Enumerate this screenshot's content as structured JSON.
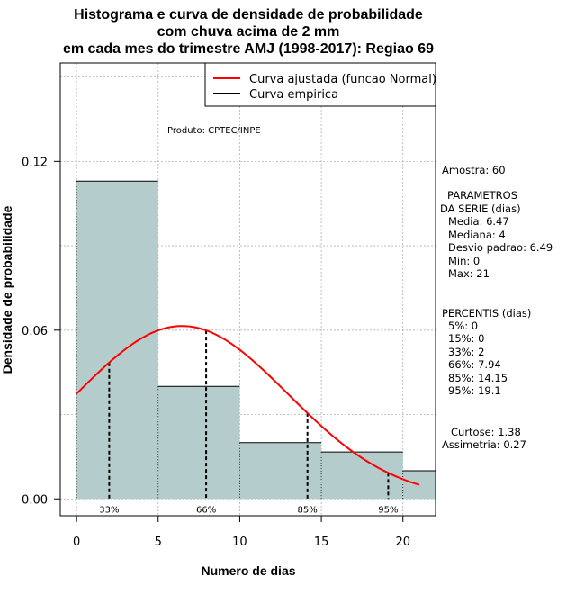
{
  "chart_data": {
    "type": "bar",
    "title": [
      "Histograma e curva de densidade de probabilidade",
      "com chuva acima de 2 mm",
      "em cada mes do trimestre AMJ (1998-2017): Regiao 69"
    ],
    "xlabel": "Numero de dias",
    "ylabel": "Densidade de probabilidade",
    "xlim": [
      -1,
      22
    ],
    "ylim": [
      -0.006,
      0.155
    ],
    "xticks": [
      0,
      5,
      10,
      15,
      20
    ],
    "yticks": [
      0.0,
      0.06,
      0.12
    ],
    "ytick_labels": [
      "0.00",
      "0.06",
      "0.12"
    ],
    "bins": [
      {
        "start": 0,
        "end": 5,
        "density": 0.113
      },
      {
        "start": 5,
        "end": 10,
        "density": 0.04
      },
      {
        "start": 10,
        "end": 15,
        "density": 0.02
      },
      {
        "start": 15,
        "end": 20,
        "density": 0.0167
      },
      {
        "start": 20,
        "end": 22,
        "density": 0.01
      }
    ],
    "normal_curve": {
      "mean": 6.47,
      "sd": 6.49,
      "x_from": 0,
      "x_to": 21
    },
    "percentile_markers": [
      {
        "label": "33%",
        "x": 2
      },
      {
        "label": "66%",
        "x": 7.94
      },
      {
        "label": "85%",
        "x": 14.15
      },
      {
        "label": "95%",
        "x": 19.1
      }
    ],
    "legend": [
      {
        "label": "Curva ajustada (funcao Normal)",
        "color": "#ff0000"
      },
      {
        "label": "Curva empirica",
        "color": "#000000"
      }
    ],
    "annotation": "Produto: CPTEC/INPE",
    "grid": true,
    "colors": {
      "bars": "#b5cccc",
      "curve": "#ff0000",
      "markers": "#000000"
    }
  },
  "side_panel": {
    "sample": "Amostra: 60",
    "params_title_1": "PARAMETROS",
    "params_title_2": "DA SERIE (dias)",
    "media": "Media: 6.47",
    "mediana": "Mediana: 4",
    "desvio": "Desvio padrao: 6.49",
    "min": "Min: 0",
    "max": "Max: 21",
    "percentis_title": "PERCENTIS (dias)",
    "p5": "5%: 0",
    "p15": "15%: 0",
    "p33": "33%: 2",
    "p66": "66%: 7.94",
    "p85": "85%: 14.15",
    "p95": "95%: 19.1",
    "curtose": "Curtose: 1.38",
    "assimetria": "Assimetria: 0.27"
  }
}
